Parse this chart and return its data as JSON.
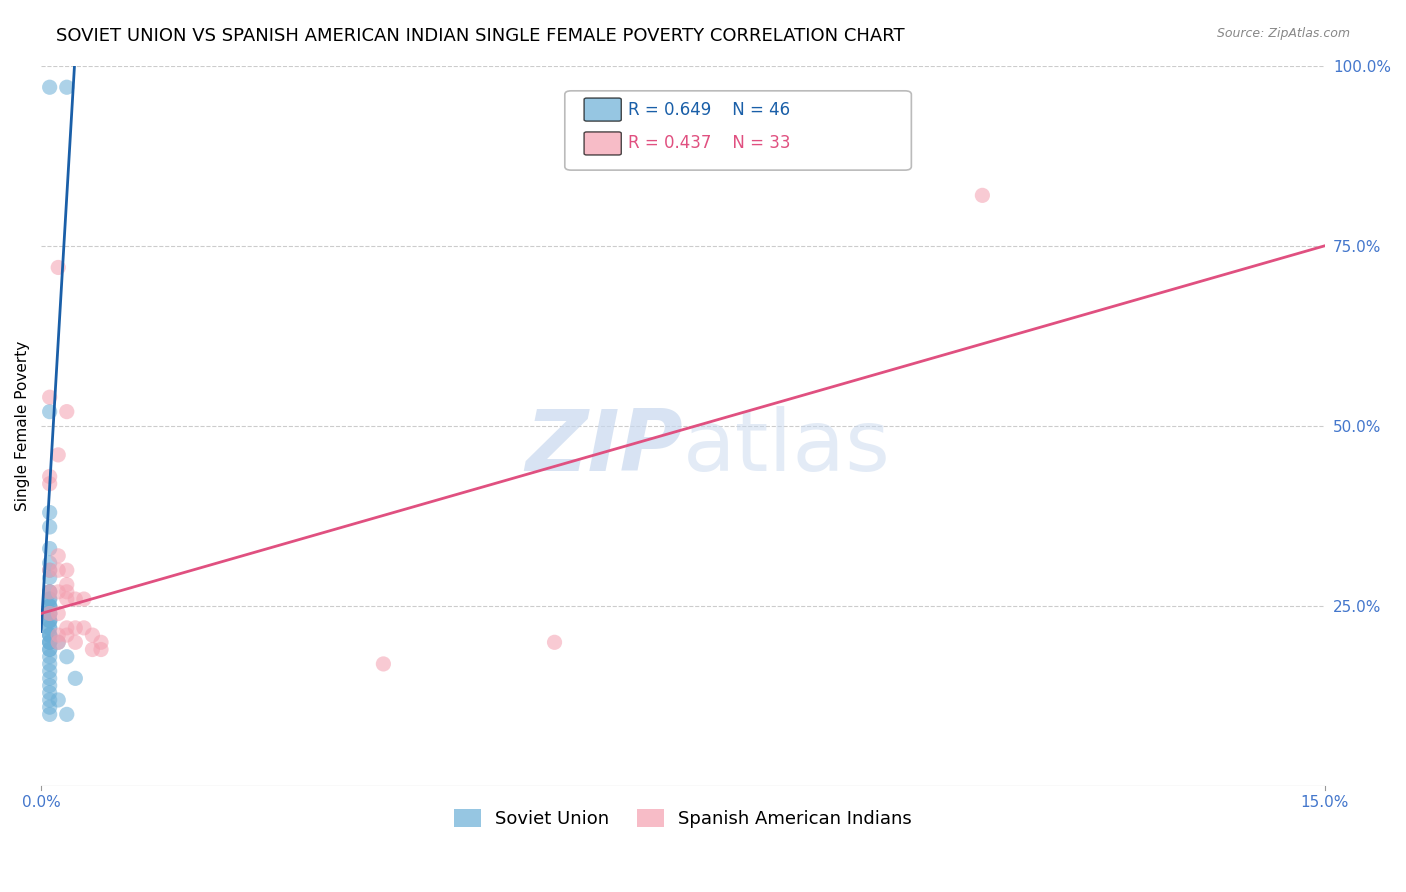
{
  "title": "SOVIET UNION VS SPANISH AMERICAN INDIAN SINGLE FEMALE POVERTY CORRELATION CHART",
  "source": "Source: ZipAtlas.com",
  "xlabel_bottom": "",
  "ylabel": "Single Female Poverty",
  "xlim": [
    0.0,
    0.15
  ],
  "ylim": [
    0.0,
    1.0
  ],
  "xtick_labels": [
    "0.0%",
    "15.0%"
  ],
  "ytick_labels": [
    "25.0%",
    "50.0%",
    "75.0%",
    "100.0%"
  ],
  "ytick_positions": [
    0.25,
    0.5,
    0.75,
    1.0
  ],
  "xtick_positions": [
    0.0,
    0.15
  ],
  "watermark": "ZIPatlas",
  "legend_blue_r": "R = 0.649",
  "legend_blue_n": "N = 46",
  "legend_pink_r": "R = 0.437",
  "legend_pink_n": "N = 33",
  "blue_color": "#6aaed6",
  "pink_color": "#f4a0b0",
  "line_blue_color": "#1a5fa8",
  "line_pink_color": "#e05080",
  "blue_scatter": [
    [
      0.001,
      0.97
    ],
    [
      0.003,
      0.97
    ],
    [
      0.001,
      0.52
    ],
    [
      0.001,
      0.38
    ],
    [
      0.001,
      0.36
    ],
    [
      0.001,
      0.33
    ],
    [
      0.001,
      0.31
    ],
    [
      0.001,
      0.3
    ],
    [
      0.001,
      0.29
    ],
    [
      0.001,
      0.27
    ],
    [
      0.001,
      0.27
    ],
    [
      0.001,
      0.26
    ],
    [
      0.001,
      0.26
    ],
    [
      0.001,
      0.25
    ],
    [
      0.001,
      0.25
    ],
    [
      0.001,
      0.25
    ],
    [
      0.001,
      0.24
    ],
    [
      0.001,
      0.24
    ],
    [
      0.001,
      0.24
    ],
    [
      0.001,
      0.23
    ],
    [
      0.001,
      0.23
    ],
    [
      0.001,
      0.23
    ],
    [
      0.001,
      0.22
    ],
    [
      0.001,
      0.22
    ],
    [
      0.001,
      0.21
    ],
    [
      0.001,
      0.21
    ],
    [
      0.001,
      0.21
    ],
    [
      0.001,
      0.2
    ],
    [
      0.001,
      0.2
    ],
    [
      0.001,
      0.2
    ],
    [
      0.001,
      0.19
    ],
    [
      0.001,
      0.19
    ],
    [
      0.001,
      0.18
    ],
    [
      0.001,
      0.17
    ],
    [
      0.001,
      0.16
    ],
    [
      0.001,
      0.15
    ],
    [
      0.001,
      0.14
    ],
    [
      0.001,
      0.13
    ],
    [
      0.001,
      0.12
    ],
    [
      0.001,
      0.11
    ],
    [
      0.001,
      0.1
    ],
    [
      0.002,
      0.2
    ],
    [
      0.003,
      0.18
    ],
    [
      0.002,
      0.12
    ],
    [
      0.003,
      0.1
    ],
    [
      0.004,
      0.15
    ]
  ],
  "pink_scatter": [
    [
      0.002,
      0.72
    ],
    [
      0.001,
      0.54
    ],
    [
      0.003,
      0.52
    ],
    [
      0.002,
      0.46
    ],
    [
      0.001,
      0.43
    ],
    [
      0.001,
      0.42
    ],
    [
      0.002,
      0.32
    ],
    [
      0.001,
      0.3
    ],
    [
      0.002,
      0.3
    ],
    [
      0.003,
      0.3
    ],
    [
      0.003,
      0.28
    ],
    [
      0.001,
      0.27
    ],
    [
      0.002,
      0.27
    ],
    [
      0.003,
      0.27
    ],
    [
      0.003,
      0.26
    ],
    [
      0.004,
      0.26
    ],
    [
      0.005,
      0.26
    ],
    [
      0.001,
      0.24
    ],
    [
      0.002,
      0.24
    ],
    [
      0.003,
      0.22
    ],
    [
      0.004,
      0.22
    ],
    [
      0.005,
      0.22
    ],
    [
      0.002,
      0.21
    ],
    [
      0.003,
      0.21
    ],
    [
      0.006,
      0.21
    ],
    [
      0.002,
      0.2
    ],
    [
      0.004,
      0.2
    ],
    [
      0.007,
      0.2
    ],
    [
      0.006,
      0.19
    ],
    [
      0.007,
      0.19
    ],
    [
      0.11,
      0.82
    ],
    [
      0.06,
      0.2
    ],
    [
      0.04,
      0.17
    ]
  ],
  "blue_trendline": [
    [
      0.0,
      0.215
    ],
    [
      0.004,
      1.02
    ]
  ],
  "blue_trendline_dashed": [
    [
      0.004,
      1.02
    ],
    [
      0.006,
      1.15
    ]
  ],
  "pink_trendline": [
    [
      0.0,
      0.24
    ],
    [
      0.15,
      0.75
    ]
  ],
  "background_color": "#ffffff",
  "grid_color": "#cccccc",
  "axis_tick_color": "#4477cc",
  "title_fontsize": 13,
  "label_fontsize": 11,
  "tick_fontsize": 11,
  "legend_fontsize": 13
}
